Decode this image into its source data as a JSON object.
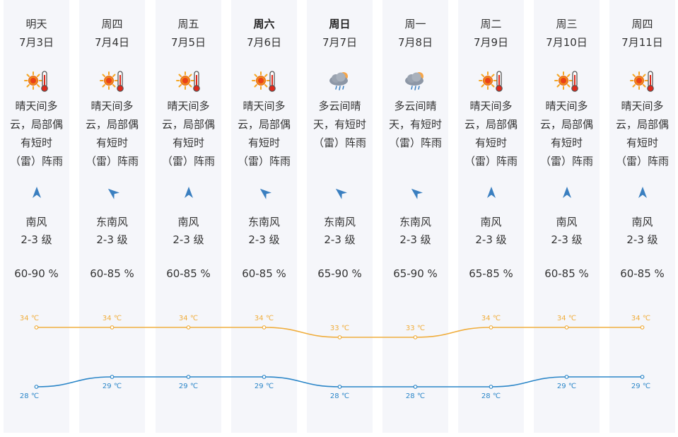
{
  "colors": {
    "high_line": "#f0ad3c",
    "low_line": "#2b86c8",
    "column_bg": "#f5f6fa",
    "arrow": "#3a7fc0"
  },
  "days": [
    {
      "weekday": "明天",
      "date": "7月3日",
      "bold": false,
      "icon": "sun-thermometer-icon",
      "desc": [
        "晴天间多",
        "云，局部偶",
        "有短时",
        "（雷）阵雨"
      ],
      "wind_icon": "wind-arrow-north-icon",
      "wind_dir": "南风",
      "wind_level": "2-3 级",
      "humidity": "60-90 %",
      "high": "34 ℃",
      "low": "28 ℃"
    },
    {
      "weekday": "周四",
      "date": "7月4日",
      "bold": false,
      "icon": "sun-thermometer-icon",
      "desc": [
        "晴天间多",
        "云，局部偶",
        "有短时",
        "（雷）阵雨"
      ],
      "wind_icon": "wind-arrow-northwest-icon",
      "wind_dir": "东南风",
      "wind_level": "2-3 级",
      "humidity": "60-85 %",
      "high": "34 ℃",
      "low": "29 ℃"
    },
    {
      "weekday": "周五",
      "date": "7月5日",
      "bold": false,
      "icon": "sun-thermometer-icon",
      "desc": [
        "晴天间多",
        "云，局部偶",
        "有短时",
        "（雷）阵雨"
      ],
      "wind_icon": "wind-arrow-north-icon",
      "wind_dir": "南风",
      "wind_level": "2-3 级",
      "humidity": "60-85 %",
      "high": "34 ℃",
      "low": "29 ℃"
    },
    {
      "weekday": "周六",
      "date": "7月6日",
      "bold": true,
      "icon": "sun-thermometer-icon",
      "desc": [
        "晴天间多",
        "云，局部偶",
        "有短时",
        "（雷）阵雨"
      ],
      "wind_icon": "wind-arrow-northwest-icon",
      "wind_dir": "东南风",
      "wind_level": "2-3 级",
      "humidity": "60-85 %",
      "high": "34 ℃",
      "low": "29 ℃"
    },
    {
      "weekday": "周日",
      "date": "7月7日",
      "bold": true,
      "icon": "cloud-sun-rain-icon",
      "desc": [
        "多云间晴",
        "天，有短时",
        "（雷）阵雨"
      ],
      "wind_icon": "wind-arrow-northwest-icon",
      "wind_dir": "东南风",
      "wind_level": "2-3 级",
      "humidity": "65-90 %",
      "high": "33 ℃",
      "low": "28 ℃"
    },
    {
      "weekday": "周一",
      "date": "7月8日",
      "bold": false,
      "icon": "cloud-sun-rain-icon",
      "desc": [
        "多云间晴",
        "天，有短时",
        "（雷）阵雨"
      ],
      "wind_icon": "wind-arrow-northwest-icon",
      "wind_dir": "东南风",
      "wind_level": "2-3 级",
      "humidity": "65-90 %",
      "high": "33 ℃",
      "low": "28 ℃"
    },
    {
      "weekday": "周二",
      "date": "7月9日",
      "bold": false,
      "icon": "sun-thermometer-icon",
      "desc": [
        "晴天间多",
        "云，局部偶",
        "有短时",
        "（雷）阵雨"
      ],
      "wind_icon": "wind-arrow-north-icon",
      "wind_dir": "南风",
      "wind_level": "2-3 级",
      "humidity": "65-85 %",
      "high": "34 ℃",
      "low": "28 ℃"
    },
    {
      "weekday": "周三",
      "date": "7月10日",
      "bold": false,
      "icon": "sun-thermometer-icon",
      "desc": [
        "晴天间多",
        "云，局部偶",
        "有短时",
        "（雷）阵雨"
      ],
      "wind_icon": "wind-arrow-north-icon",
      "wind_dir": "南风",
      "wind_level": "2-3 级",
      "humidity": "60-85 %",
      "high": "34 ℃",
      "low": "29 ℃"
    },
    {
      "weekday": "周四",
      "date": "7月11日",
      "bold": false,
      "icon": "sun-thermometer-icon",
      "desc": [
        "晴天间多",
        "云，局部偶",
        "有短时",
        "（雷）阵雨"
      ],
      "wind_icon": "wind-arrow-north-icon",
      "wind_dir": "南风",
      "wind_level": "2-3 级",
      "humidity": "60-85 %",
      "high": "34 ℃",
      "low": "29 ℃"
    }
  ],
  "chart_data": {
    "type": "line",
    "x": [
      "7月3日",
      "7月4日",
      "7月5日",
      "7月6日",
      "7月7日",
      "7月8日",
      "7月9日",
      "7月10日",
      "7月11日"
    ],
    "series": [
      {
        "values": [
          34,
          34,
          34,
          34,
          33,
          33,
          34,
          34,
          34
        ]
      },
      {
        "values": [
          28,
          29,
          29,
          29,
          28,
          28,
          28,
          29,
          29
        ]
      }
    ],
    "unit": "℃"
  }
}
